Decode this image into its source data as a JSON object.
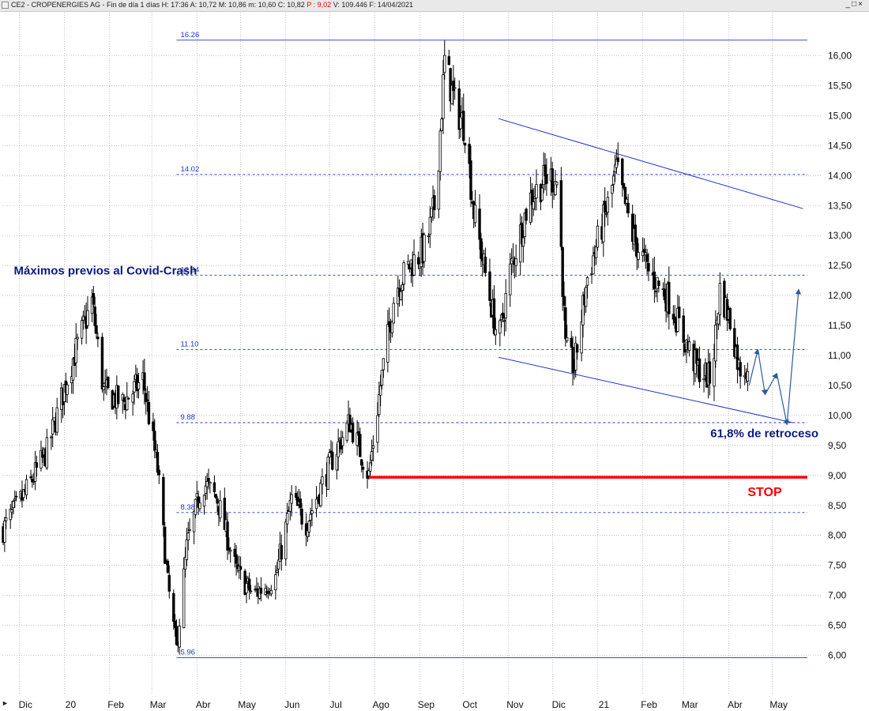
{
  "header": {
    "icon": "chart-window-icon",
    "prefix": "CE2 - CROPENERGIES AG - Fin de día 1 días",
    "h": "H: 17:36",
    "a": "A: 10,72",
    "m": "M: 10,86",
    "mm": "m: 10,60",
    "c": "C: 10,82",
    "p": "P : 9,02",
    "v": "V: 109.446",
    "f": "F: 14/04/2021",
    "window_buttons": {
      "minimize": "_",
      "maximize": "□",
      "close": "×"
    }
  },
  "colors": {
    "candle": "#000000",
    "lines": "#2233cc",
    "stop": "#ff0000",
    "annotation": "#0b1a80",
    "grid": "#9a9a9a",
    "projection": "#2a5d9a"
  },
  "chart_data": {
    "type": "candlestick",
    "ylim": [
      5.85,
      16.25
    ],
    "y_ticks": [
      "6,00",
      "6,50",
      "7,00",
      "7,50",
      "8,00",
      "8,50",
      "9,00",
      "9,50",
      "10,00",
      "10,50",
      "11,00",
      "11,50",
      "12,00",
      "12,50",
      "13,00",
      "13,50",
      "14,00",
      "14,50",
      "15,00",
      "15,50",
      "16,00"
    ],
    "y_tick_values": [
      6.0,
      6.5,
      7.0,
      7.5,
      8.0,
      8.5,
      9.0,
      9.5,
      10.0,
      10.5,
      11.0,
      11.5,
      12.0,
      12.5,
      13.0,
      13.5,
      14.0,
      14.5,
      15.0,
      15.5,
      16.0
    ],
    "x_ticks": [
      "Dic",
      "20",
      "Feb",
      "Mar",
      "Abr",
      "May",
      "Jun",
      "Jul",
      "Ago",
      "Sep",
      "Oct",
      "Nov",
      "Dic",
      "21",
      "Feb",
      "Mar",
      "Abr",
      "May"
    ],
    "x_tick_dates": [
      "2019-12-01",
      "2020-01-01",
      "2020-02-01",
      "2020-03-01",
      "2020-04-01",
      "2020-05-01",
      "2020-06-01",
      "2020-07-01",
      "2020-08-01",
      "2020-09-01",
      "2020-10-01",
      "2020-11-01",
      "2020-12-01",
      "2021-01-01",
      "2021-02-01",
      "2021-03-01",
      "2021-04-01",
      "2021-05-01"
    ],
    "price_path": [
      [
        "2019-11-20",
        8.1
      ],
      [
        "2019-12-05",
        8.7
      ],
      [
        "2019-12-20",
        9.4
      ],
      [
        "2020-01-05",
        10.8
      ],
      [
        "2020-01-20",
        11.9
      ],
      [
        "2020-01-28",
        10.4
      ],
      [
        "2020-02-10",
        10.2
      ],
      [
        "2020-02-24",
        10.6
      ],
      [
        "2020-03-05",
        9.1
      ],
      [
        "2020-03-12",
        7.2
      ],
      [
        "2020-03-18",
        6.1
      ],
      [
        "2020-03-25",
        7.8
      ],
      [
        "2020-04-05",
        8.9
      ],
      [
        "2020-04-15",
        8.6
      ],
      [
        "2020-04-28",
        7.4
      ],
      [
        "2020-05-10",
        7.0
      ],
      [
        "2020-05-25",
        7.3
      ],
      [
        "2020-06-05",
        8.6
      ],
      [
        "2020-06-15",
        8.2
      ],
      [
        "2020-06-25",
        8.8
      ],
      [
        "2020-07-05",
        9.4
      ],
      [
        "2020-07-15",
        9.9
      ],
      [
        "2020-07-28",
        9.0
      ],
      [
        "2020-08-05",
        10.5
      ],
      [
        "2020-08-15",
        12.1
      ],
      [
        "2020-08-25",
        12.5
      ],
      [
        "2020-09-05",
        12.8
      ],
      [
        "2020-09-12",
        13.6
      ],
      [
        "2020-09-18",
        15.9
      ],
      [
        "2020-09-25",
        15.2
      ],
      [
        "2020-10-02",
        14.8
      ],
      [
        "2020-10-08",
        13.4
      ],
      [
        "2020-10-18",
        12.1
      ],
      [
        "2020-10-25",
        11.2
      ],
      [
        "2020-11-02",
        12.4
      ],
      [
        "2020-11-15",
        13.6
      ],
      [
        "2020-11-28",
        14.0
      ],
      [
        "2020-12-05",
        13.9
      ],
      [
        "2020-12-10",
        11.1
      ],
      [
        "2020-12-16",
        10.8
      ],
      [
        "2020-12-25",
        12.3
      ],
      [
        "2021-01-08",
        13.5
      ],
      [
        "2021-01-14",
        14.1
      ],
      [
        "2021-01-25",
        13.0
      ],
      [
        "2021-02-05",
        12.4
      ],
      [
        "2021-02-20",
        11.9
      ],
      [
        "2021-03-01",
        11.3
      ],
      [
        "2021-03-10",
        10.8
      ],
      [
        "2021-03-20",
        10.6
      ],
      [
        "2021-03-26",
        12.1
      ],
      [
        "2021-04-03",
        11.5
      ],
      [
        "2021-04-08",
        10.8
      ],
      [
        "2021-04-14",
        10.82
      ]
    ],
    "fib_levels": [
      {
        "label": "16.26",
        "value": 16.26,
        "style": "solid"
      },
      {
        "label": "14.02",
        "value": 14.02,
        "style": "dashed"
      },
      {
        "label": "12.34",
        "value": 12.34,
        "style": "dashed"
      },
      {
        "label": "11.10",
        "value": 11.1,
        "style": "dashed"
      },
      {
        "label": "9.88",
        "value": 9.88,
        "style": "dashed"
      },
      {
        "label": "8.38",
        "value": 8.38,
        "style": "dashed"
      },
      {
        "label": "5.96",
        "value": 5.96,
        "style": "solid"
      }
    ],
    "fib_start_date": "2020-03-18",
    "fib_end_date": "2021-05-25",
    "channel": {
      "upper": [
        [
          "2020-10-25",
          14.95
        ],
        [
          "2021-05-22",
          13.45
        ]
      ],
      "lower": [
        [
          "2020-10-25",
          10.97
        ],
        [
          "2021-05-15",
          9.88
        ]
      ]
    },
    "stop": {
      "value": 8.97,
      "from": "2020-07-28",
      "to": "2021-05-25",
      "label": "STOP"
    },
    "projection": [
      [
        "2021-04-15",
        10.5
      ],
      [
        "2021-04-21",
        11.1
      ],
      [
        "2021-04-26",
        10.35
      ],
      [
        "2021-05-04",
        10.7
      ],
      [
        "2021-05-11",
        9.85
      ],
      [
        "2021-05-19",
        12.1
      ]
    ],
    "annotations": [
      {
        "text": "Máximos previos al Covid-Crash",
        "anchor_date": "2019-11-23",
        "anchor_value": 12.4
      },
      {
        "text": "61,8% de retroceso",
        "anchor_date": "2021-01-10",
        "anchor_value": 9.7
      }
    ]
  }
}
